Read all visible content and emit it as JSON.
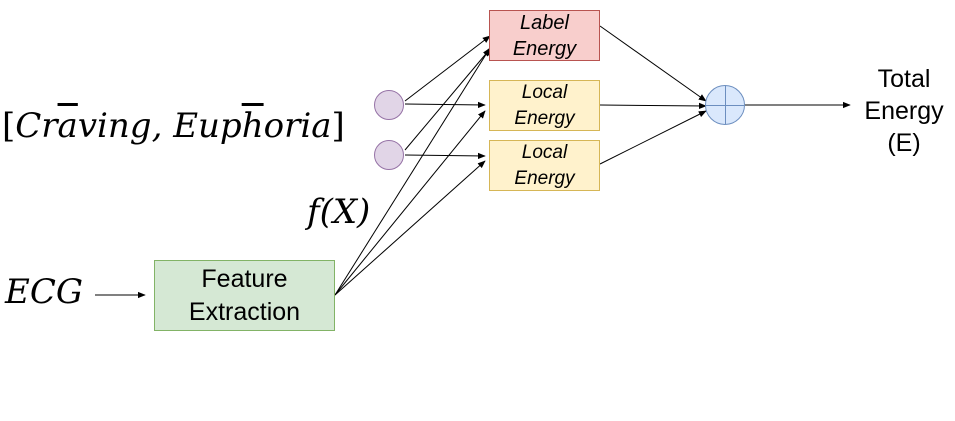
{
  "inputs": {
    "labels_text": "[Cravīng, Euphōria]",
    "labels_parts": {
      "open": "[",
      "craving_pre": "Cr",
      "craving_bar": "a",
      "craving_post": "ving",
      "sep": ", ",
      "euphoria_pre": "Eup",
      "euphoria_bar": "h",
      "euphoria_post": "oria",
      "close": "]"
    },
    "ecg": "ECG",
    "fx": "f(X)"
  },
  "boxes": {
    "label_energy": {
      "line1": "Label",
      "line2": "Energy",
      "fill": "#f8cecc",
      "stroke": "#b85450"
    },
    "local_energy_1": {
      "line1": "Local",
      "line2": "Energy",
      "fill": "#fff2cc",
      "stroke": "#d6b656"
    },
    "local_energy_2": {
      "line1": "Local",
      "line2": "Energy",
      "fill": "#fff2cc",
      "stroke": "#d6b656"
    },
    "feature_extraction": {
      "line1": "Feature",
      "line2": "Extraction",
      "fill": "#d5e8d4",
      "stroke": "#82b366"
    }
  },
  "output": {
    "line1": "Total",
    "line2": "Energy",
    "line3": "(E)"
  },
  "nodes": {
    "label_node_fill": "#e1d5e7",
    "sum_node_fill": "#dae8fc",
    "sum_node_symbol": "plus-circle"
  }
}
